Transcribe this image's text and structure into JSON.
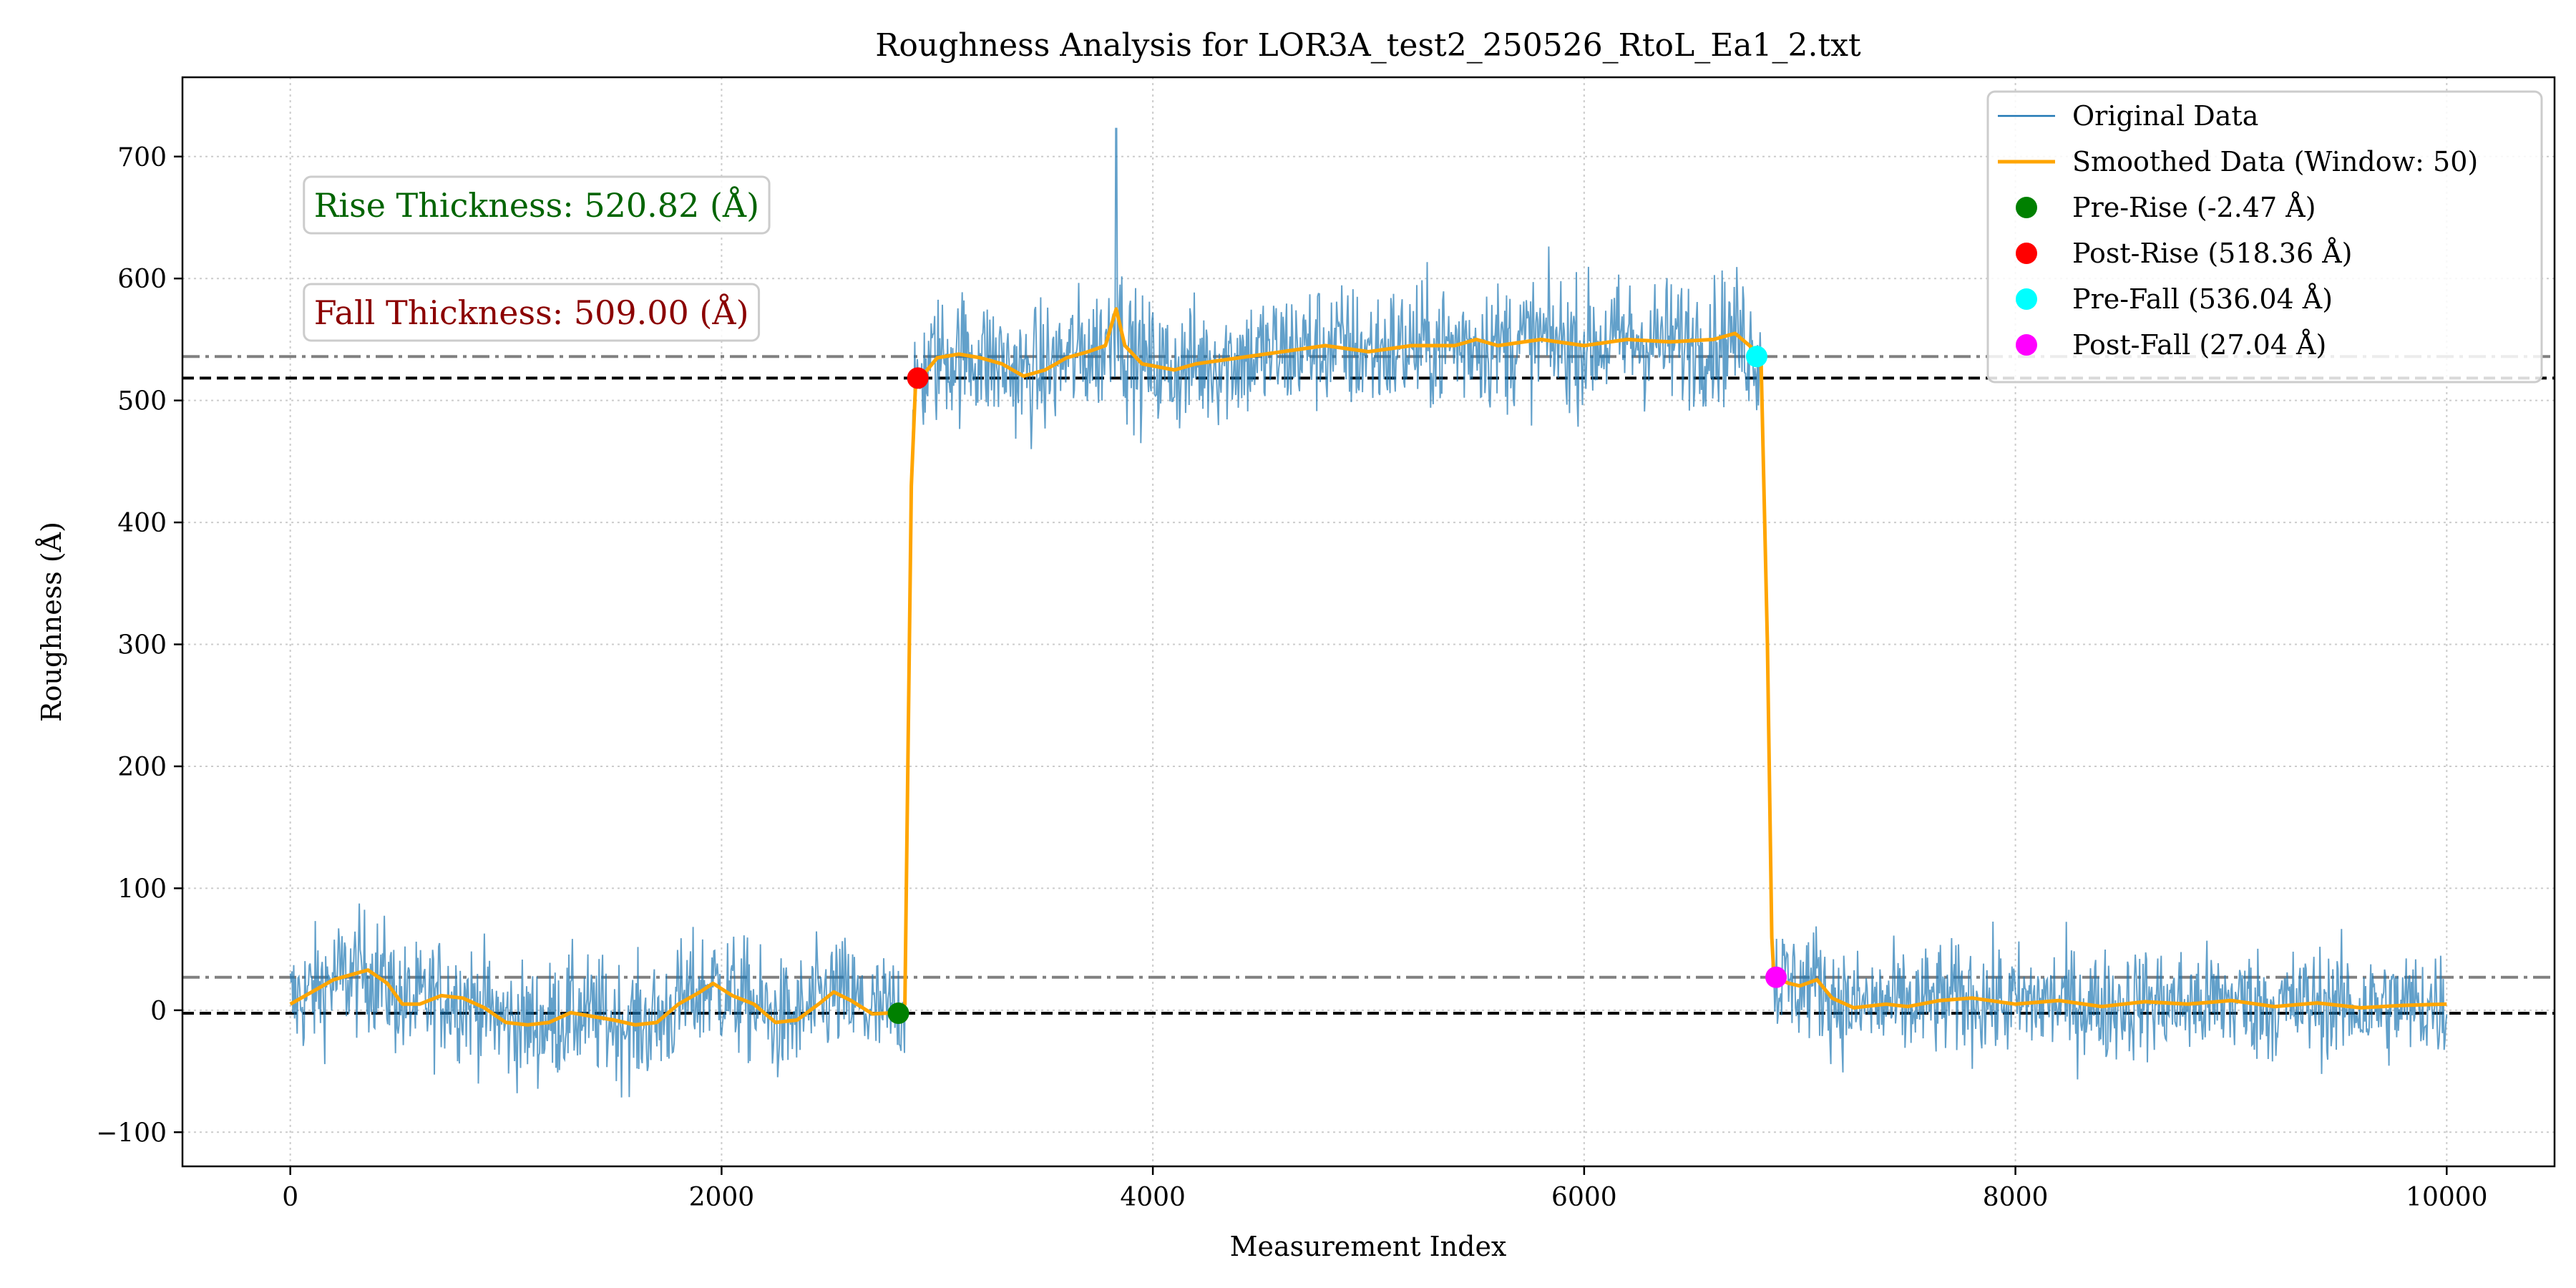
{
  "chart_data": {
    "type": "line",
    "title": "Roughness Analysis for LOR3A_test2_250526_RtoL_Ea1_2.txt",
    "xlabel": "Measurement Index",
    "ylabel": "Roughness (Å)",
    "xlim": [
      -500,
      10500
    ],
    "ylim": [
      -128,
      765
    ],
    "xticks": [
      0,
      2000,
      4000,
      6000,
      8000,
      10000
    ],
    "xtick_labels": [
      "0",
      "2000",
      "4000",
      "6000",
      "8000",
      "10000"
    ],
    "yticks": [
      -100,
      0,
      100,
      200,
      300,
      400,
      500,
      600,
      700
    ],
    "ytick_labels": [
      "−100",
      "0",
      "100",
      "200",
      "300",
      "400",
      "500",
      "600",
      "700"
    ],
    "grid": true,
    "legend_position": "top-right",
    "series": [
      {
        "name": "Original Data",
        "kind": "noisy-line",
        "color": "#1f77b4",
        "levels": [
          {
            "from": 0,
            "to": 2820,
            "mean": 0,
            "noise": 45
          },
          {
            "from": 2900,
            "to": 6820,
            "mean": 538,
            "noise": 48
          },
          {
            "from": 6880,
            "to": 10000,
            "mean": 5,
            "noise": 42
          }
        ],
        "spike": {
          "x": 3830,
          "y": 723
        }
      },
      {
        "name": "Smoothed Data (Window: 50)",
        "kind": "line",
        "color": "#ffa500",
        "points": [
          [
            0,
            5
          ],
          [
            100,
            15
          ],
          [
            200,
            25
          ],
          [
            300,
            30
          ],
          [
            360,
            33
          ],
          [
            450,
            22
          ],
          [
            520,
            5
          ],
          [
            600,
            5
          ],
          [
            700,
            12
          ],
          [
            800,
            10
          ],
          [
            900,
            2
          ],
          [
            1000,
            -10
          ],
          [
            1100,
            -12
          ],
          [
            1200,
            -10
          ],
          [
            1300,
            -2
          ],
          [
            1400,
            -5
          ],
          [
            1500,
            -8
          ],
          [
            1600,
            -12
          ],
          [
            1700,
            -10
          ],
          [
            1800,
            5
          ],
          [
            1900,
            15
          ],
          [
            1960,
            22
          ],
          [
            2050,
            12
          ],
          [
            2150,
            5
          ],
          [
            2250,
            -10
          ],
          [
            2350,
            -8
          ],
          [
            2450,
            5
          ],
          [
            2520,
            15
          ],
          [
            2600,
            8
          ],
          [
            2700,
            -3
          ],
          [
            2800,
            -2
          ],
          [
            2830,
            -3
          ],
          [
            2850,
            5
          ],
          [
            2880,
            430
          ],
          [
            2900,
            515
          ],
          [
            2930,
            520
          ],
          [
            3000,
            535
          ],
          [
            3100,
            538
          ],
          [
            3200,
            535
          ],
          [
            3300,
            530
          ],
          [
            3400,
            520
          ],
          [
            3500,
            525
          ],
          [
            3600,
            535
          ],
          [
            3700,
            540
          ],
          [
            3780,
            545
          ],
          [
            3830,
            575
          ],
          [
            3870,
            545
          ],
          [
            3950,
            530
          ],
          [
            4100,
            525
          ],
          [
            4200,
            530
          ],
          [
            4400,
            535
          ],
          [
            4600,
            540
          ],
          [
            4800,
            545
          ],
          [
            5000,
            540
          ],
          [
            5200,
            545
          ],
          [
            5400,
            545
          ],
          [
            5500,
            550
          ],
          [
            5600,
            545
          ],
          [
            5800,
            550
          ],
          [
            6000,
            545
          ],
          [
            6200,
            550
          ],
          [
            6400,
            548
          ],
          [
            6600,
            550
          ],
          [
            6700,
            555
          ],
          [
            6800,
            540
          ],
          [
            6820,
            536
          ],
          [
            6850,
            300
          ],
          [
            6870,
            60
          ],
          [
            6880,
            27
          ],
          [
            6950,
            22
          ],
          [
            7000,
            20
          ],
          [
            7080,
            25
          ],
          [
            7150,
            10
          ],
          [
            7250,
            2
          ],
          [
            7400,
            5
          ],
          [
            7500,
            3
          ],
          [
            7650,
            8
          ],
          [
            7800,
            10
          ],
          [
            8000,
            5
          ],
          [
            8200,
            8
          ],
          [
            8400,
            3
          ],
          [
            8600,
            7
          ],
          [
            8800,
            5
          ],
          [
            9000,
            8
          ],
          [
            9200,
            3
          ],
          [
            9400,
            6
          ],
          [
            9600,
            2
          ],
          [
            9800,
            4
          ],
          [
            10000,
            5
          ]
        ]
      }
    ],
    "markers": [
      {
        "name": "Pre-Rise (-2.47 Å)",
        "x": 2820,
        "y": -2.47,
        "color": "#008000"
      },
      {
        "name": "Post-Rise (518.36 Å)",
        "x": 2910,
        "y": 518.36,
        "color": "#ff0000"
      },
      {
        "name": "Pre-Fall (536.04 Å)",
        "x": 6800,
        "y": 536.04,
        "color": "#00ffff"
      },
      {
        "name": "Post-Fall (27.04 Å)",
        "x": 6890,
        "y": 27.04,
        "color": "#ff00ff"
      }
    ],
    "reference_lines": [
      {
        "y": -2.47,
        "style": "dashed",
        "color": "#000000"
      },
      {
        "y": 518.36,
        "style": "dashed",
        "color": "#000000"
      },
      {
        "y": 536.04,
        "style": "dashdot",
        "color": "#808080"
      },
      {
        "y": 27.04,
        "style": "dashdot",
        "color": "#808080"
      }
    ],
    "annotations": [
      {
        "text": "Rise Thickness: 520.82 (Å)",
        "color": "#006400",
        "x": 50,
        "y": 660
      },
      {
        "text": "Fall Thickness: 509.00 (Å)",
        "color": "#8b0000",
        "x": 50,
        "y": 572
      }
    ]
  }
}
